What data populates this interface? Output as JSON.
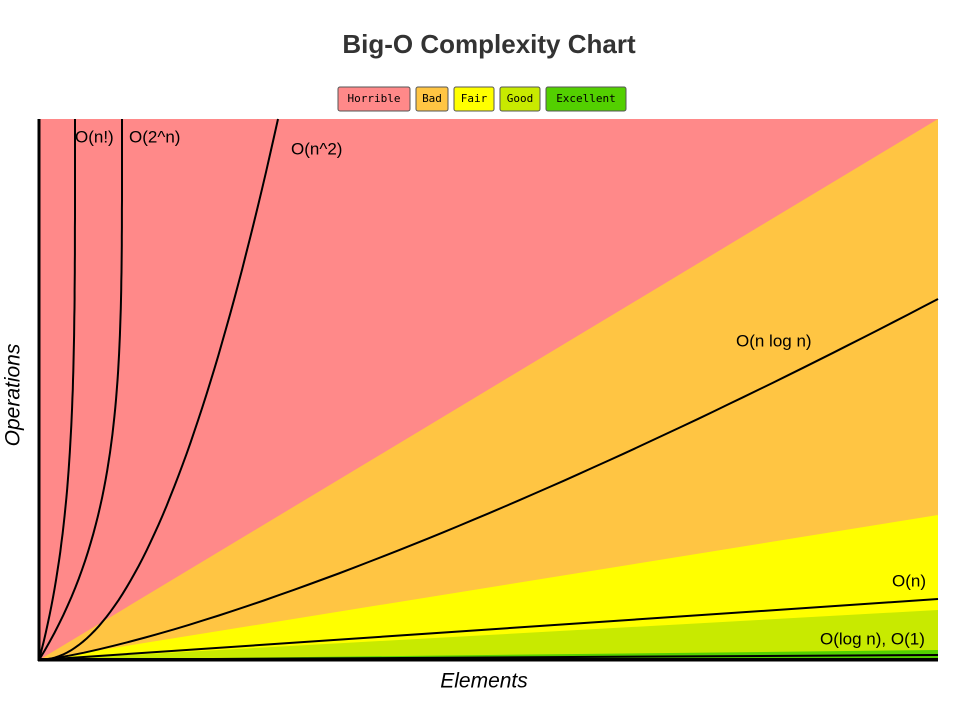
{
  "title": "Big-O Complexity Chart",
  "legend": [
    {
      "label": "Horrible",
      "color": "#ff8989"
    },
    {
      "label": "Bad",
      "color": "#ffc543"
    },
    {
      "label": "Fair",
      "color": "#ffff00"
    },
    {
      "label": "Good",
      "color": "#c8ea00"
    },
    {
      "label": "Excellent",
      "color": "#53d000"
    }
  ],
  "x_label": "Elements",
  "y_label": "Operations",
  "curve_labels": [
    "O(n!)",
    "O(2^n)",
    "O(n^2)",
    "O(n log n)",
    "O(n)",
    "O(log n), O(1)"
  ]
}
